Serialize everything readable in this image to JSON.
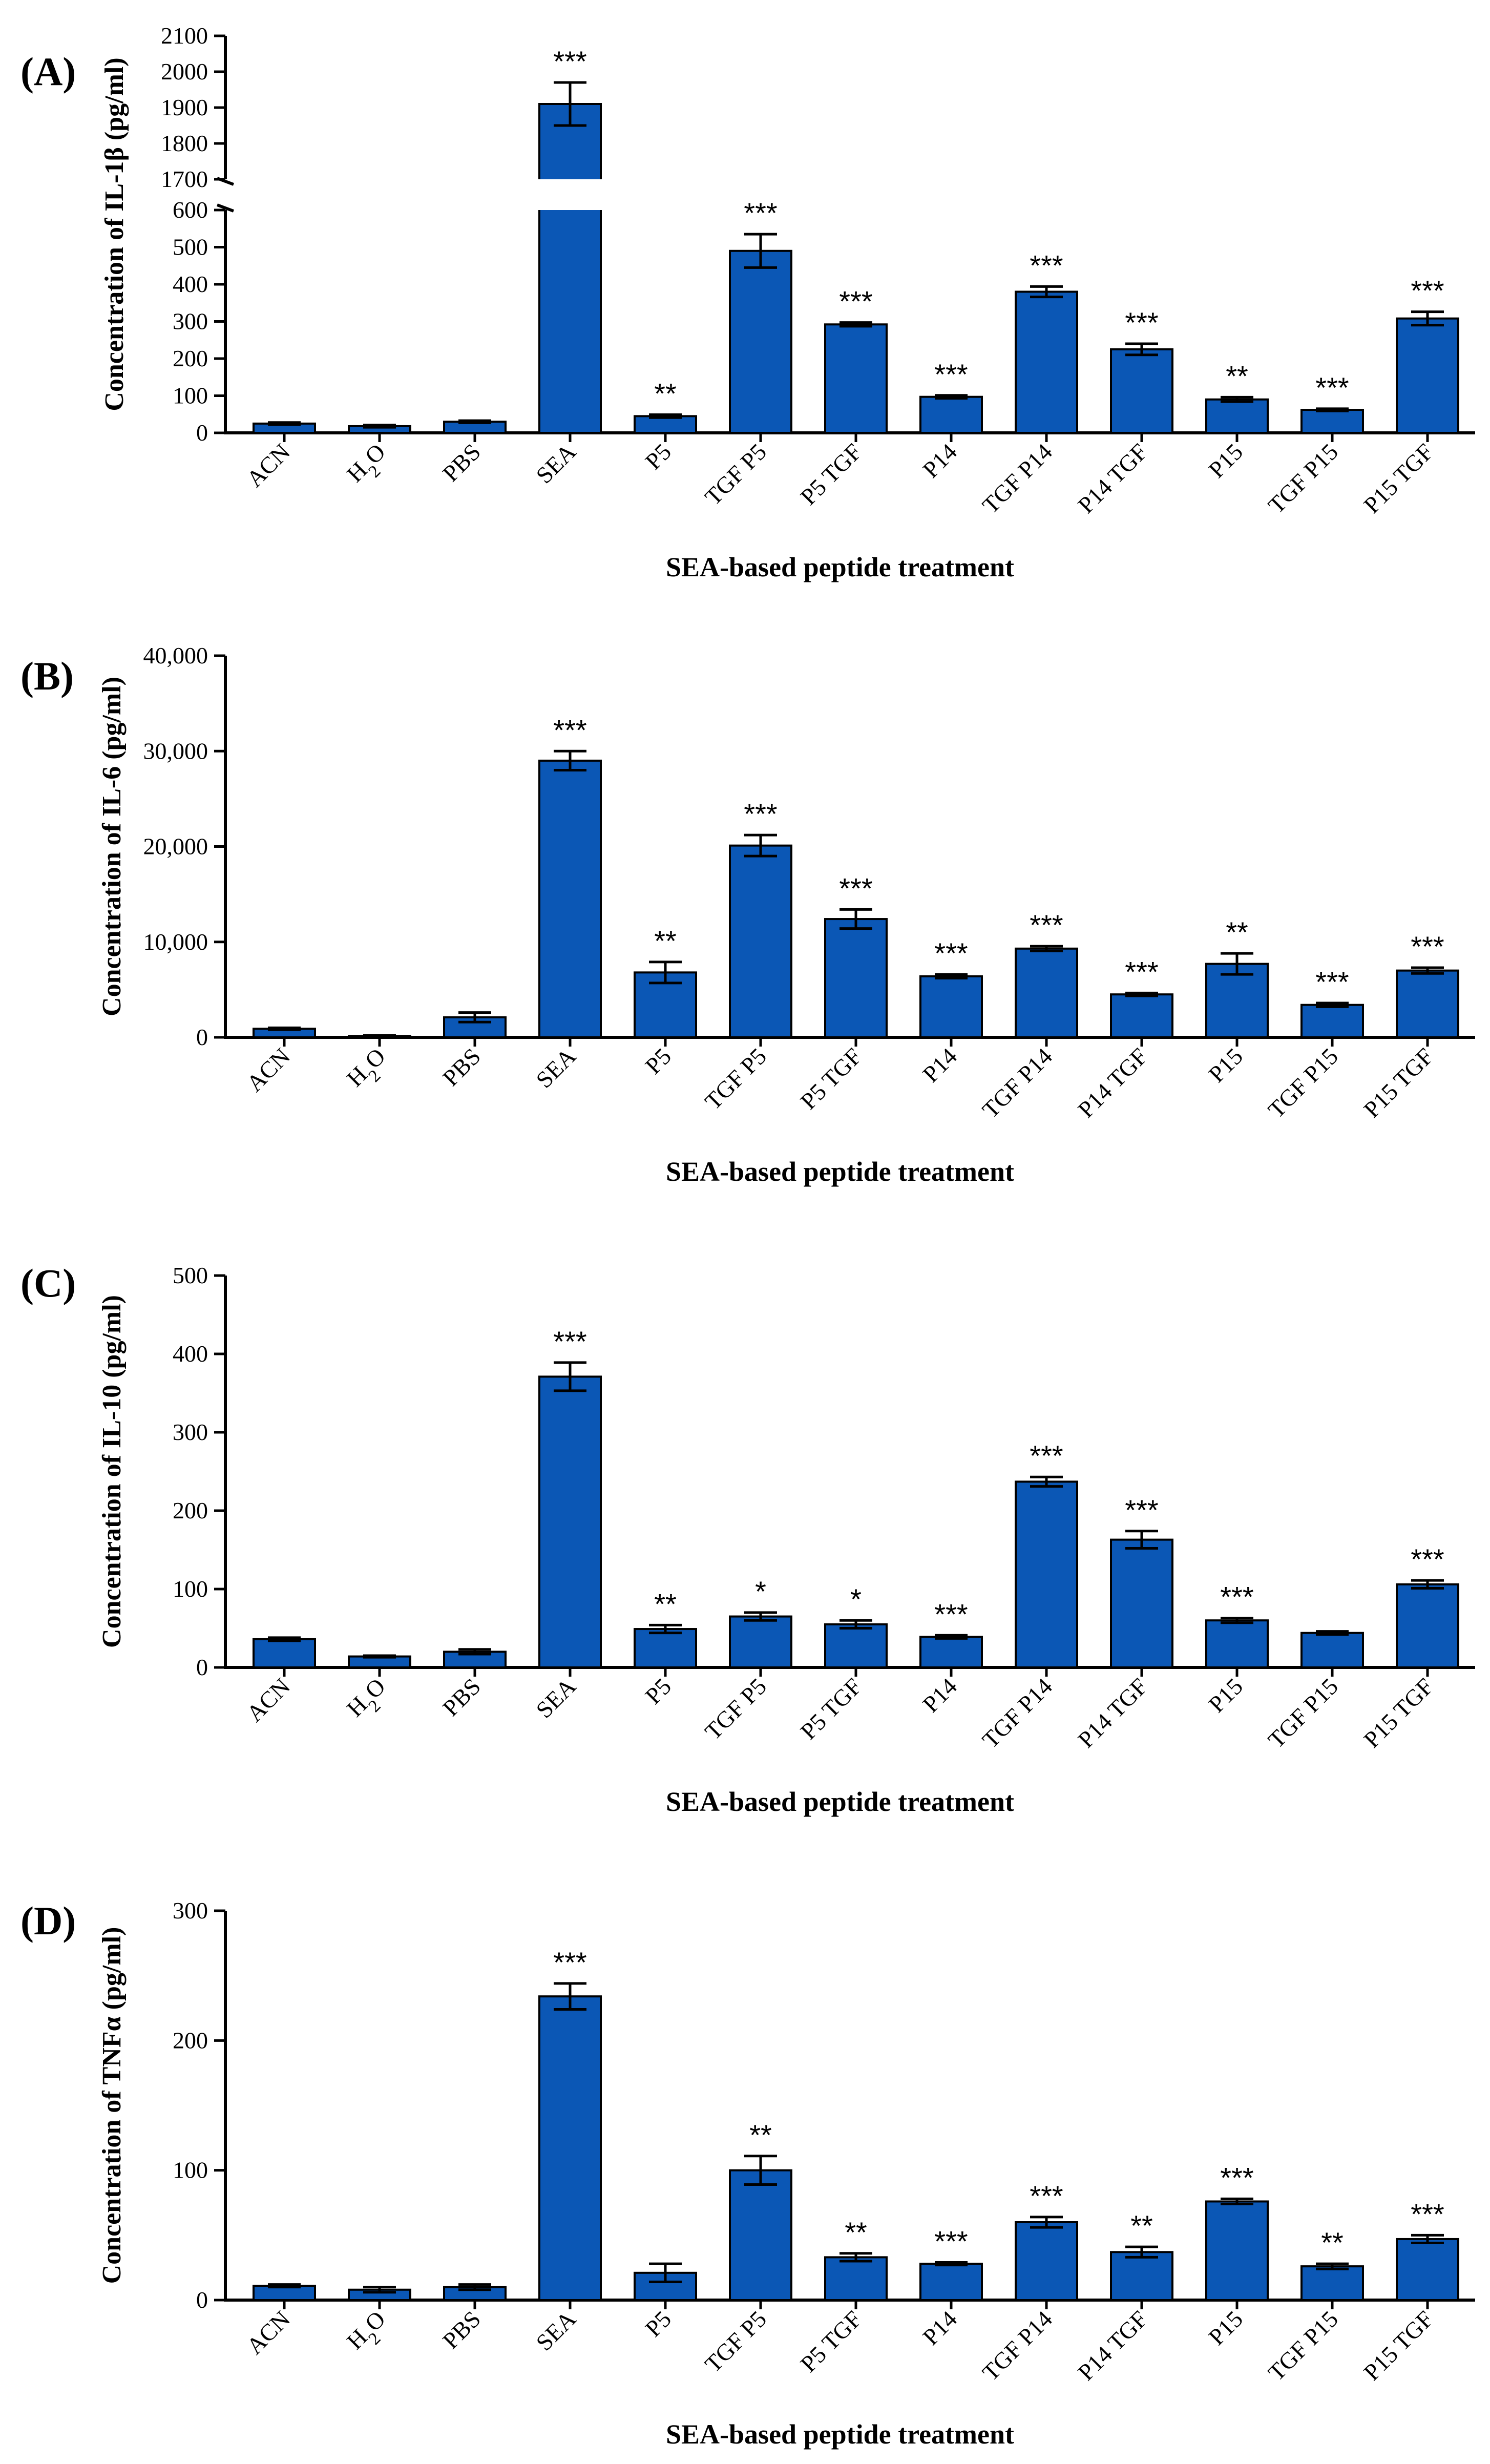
{
  "colors": {
    "bar": "#0b57b5",
    "axis": "#000000"
  },
  "chart_data": [
    {
      "type": "bar",
      "panel": "(A)",
      "ylabel": "Concentration of IL-1β (pg/ml)",
      "xlabel": "SEA-based peptide treatment",
      "categories": [
        "ACN",
        "H2O",
        "PBS",
        "SEA",
        "P5",
        "TGF P5",
        "P5 TGF",
        "P14",
        "TGF P14",
        "P14 TGF",
        "P15",
        "TGF P15",
        "P15 TGF"
      ],
      "values": [
        25,
        18,
        30,
        1910,
        45,
        490,
        292,
        97,
        380,
        225,
        90,
        62,
        308
      ],
      "errors": [
        3,
        3,
        3,
        60,
        4,
        45,
        5,
        4,
        14,
        15,
        6,
        3,
        18
      ],
      "significance": [
        "",
        "",
        "",
        "***",
        "**",
        "***",
        "***",
        "***",
        "***",
        "***",
        "**",
        "***",
        "***"
      ],
      "axis_break": {
        "lower": [
          0,
          600
        ],
        "upper": [
          1700,
          2100
        ]
      },
      "yticks_lower": [
        0,
        100,
        200,
        300,
        400,
        500,
        600
      ],
      "yticks_upper": [
        1700,
        1800,
        1900,
        2000,
        2100
      ],
      "ytick_labels_lower": [
        "0",
        "100",
        "200",
        "300",
        "400",
        "500",
        "600"
      ],
      "ytick_labels_upper": [
        "1700",
        "1800",
        "1900",
        "2000",
        "2100"
      ]
    },
    {
      "type": "bar",
      "panel": "(B)",
      "ylabel": "Concentration of IL-6 (pg/ml)",
      "xlabel": "SEA-based peptide treatment",
      "categories": [
        "ACN",
        "H2O",
        "PBS",
        "SEA",
        "P5",
        "TGF P5",
        "P5 TGF",
        "P14",
        "TGF P14",
        "P14 TGF",
        "P15",
        "TGF P15",
        "P15 TGF"
      ],
      "values": [
        900,
        150,
        2100,
        29000,
        6800,
        20100,
        12400,
        6400,
        9300,
        4500,
        7700,
        3400,
        7000
      ],
      "errors": [
        100,
        50,
        500,
        1000,
        1100,
        1100,
        1000,
        200,
        250,
        150,
        1100,
        200,
        300
      ],
      "significance": [
        "",
        "",
        "",
        "***",
        "**",
        "***",
        "***",
        "***",
        "***",
        "***",
        "**",
        "***",
        "***"
      ],
      "ylim": [
        0,
        40000
      ],
      "yticks": [
        0,
        10000,
        20000,
        30000,
        40000
      ],
      "ytick_labels": [
        "0",
        "10,000",
        "20,000",
        "30,000",
        "40,000"
      ]
    },
    {
      "type": "bar",
      "panel": "(C)",
      "ylabel": "Concentration of IL-10 (pg/ml)",
      "xlabel": "SEA-based peptide treatment",
      "categories": [
        "ACN",
        "H2O",
        "PBS",
        "SEA",
        "P5",
        "TGF P5",
        "P5 TGF",
        "P14",
        "TGF P14",
        "P14 TGF",
        "P15",
        "TGF P15",
        "P15 TGF"
      ],
      "values": [
        36,
        14,
        20,
        371,
        49,
        65,
        55,
        39,
        237,
        163,
        60,
        44,
        106
      ],
      "errors": [
        2,
        1,
        3,
        18,
        5,
        5,
        5,
        2,
        6,
        11,
        3,
        2,
        5
      ],
      "significance": [
        "",
        "",
        "",
        "***",
        "**",
        "*",
        "*",
        "***",
        "***",
        "***",
        "***",
        "",
        "***"
      ],
      "ylim": [
        0,
        500
      ],
      "yticks": [
        0,
        100,
        200,
        300,
        400,
        500
      ],
      "ytick_labels": [
        "0",
        "100",
        "200",
        "300",
        "400",
        "500"
      ]
    },
    {
      "type": "bar",
      "panel": "(D)",
      "ylabel": "Concentration of TNFα (pg/ml)",
      "xlabel": "SEA-based peptide treatment",
      "categories": [
        "ACN",
        "H2O",
        "PBS",
        "SEA",
        "P5",
        "TGF P5",
        "P5 TGF",
        "P14",
        "TGF P14",
        "P14 TGF",
        "P15",
        "TGF P15",
        "P15 TGF"
      ],
      "values": [
        11,
        8,
        10,
        234,
        21,
        100,
        33,
        28,
        60,
        37,
        76,
        26,
        47
      ],
      "errors": [
        1,
        2,
        2,
        10,
        7,
        11,
        3,
        1,
        4,
        4,
        2,
        2,
        3
      ],
      "significance": [
        "",
        "",
        "",
        "***",
        "",
        "**",
        "**",
        "***",
        "***",
        "**",
        "***",
        "**",
        "***"
      ],
      "ylim": [
        0,
        300
      ],
      "yticks": [
        0,
        100,
        200,
        300
      ],
      "ytick_labels": [
        "0",
        "100",
        "200",
        "300"
      ]
    }
  ]
}
